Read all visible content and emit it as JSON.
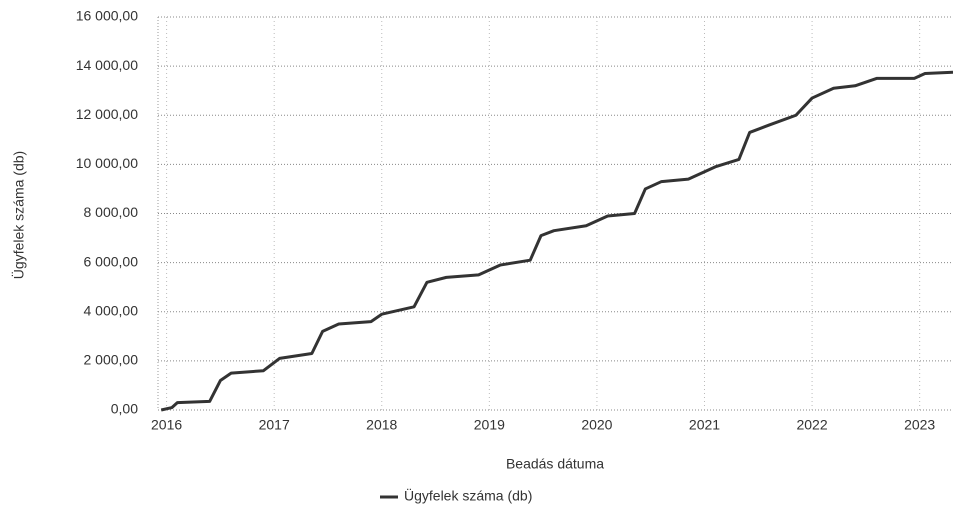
{
  "chart_data": {
    "type": "line",
    "x_label": "Beadás dátuma",
    "y_label": "Ügyfelek száma (db)",
    "x": [
      2015.95,
      2016.05,
      2016.1,
      2016.4,
      2016.5,
      2016.6,
      2016.9,
      2017.05,
      2017.35,
      2017.45,
      2017.6,
      2017.9,
      2018.0,
      2018.3,
      2018.42,
      2018.6,
      2018.9,
      2019.1,
      2019.38,
      2019.48,
      2019.6,
      2019.9,
      2020.1,
      2020.35,
      2020.45,
      2020.6,
      2020.85,
      2021.1,
      2021.32,
      2021.42,
      2021.6,
      2021.85,
      2022.0,
      2022.2,
      2022.4,
      2022.6,
      2022.95,
      2023.05,
      2023.31
    ],
    "series": [
      {
        "name": "Ügyfelek száma (db)",
        "color": "#333333",
        "values": [
          0,
          100,
          300,
          350,
          1200,
          1500,
          1600,
          2100,
          2300,
          3200,
          3500,
          3600,
          3900,
          4200,
          5200,
          5400,
          5500,
          5900,
          6100,
          7100,
          7300,
          7500,
          7900,
          8000,
          9000,
          9300,
          9400,
          9900,
          10200,
          11300,
          11600,
          12000,
          12700,
          13100,
          13200,
          13500,
          13500,
          13700,
          13750
        ]
      }
    ],
    "xlim": [
      2015.92,
      2023.31
    ],
    "xticks": [
      2016,
      2017,
      2018,
      2019,
      2020,
      2021,
      2022,
      2023
    ],
    "ylim": [
      0,
      16000
    ],
    "yticks": [
      {
        "value": 0,
        "label": "0,00"
      },
      {
        "value": 2000,
        "label": "2 000,00"
      },
      {
        "value": 4000,
        "label": "4 000,00"
      },
      {
        "value": 6000,
        "label": "6 000,00"
      },
      {
        "value": 8000,
        "label": "8 000,00"
      },
      {
        "value": 10000,
        "label": "10 000,00"
      },
      {
        "value": 12000,
        "label": "12 000,00"
      },
      {
        "value": 14000,
        "label": "14 000,00"
      },
      {
        "value": 16000,
        "label": "16 000,00"
      }
    ],
    "grid": true,
    "legend": "bottom"
  }
}
